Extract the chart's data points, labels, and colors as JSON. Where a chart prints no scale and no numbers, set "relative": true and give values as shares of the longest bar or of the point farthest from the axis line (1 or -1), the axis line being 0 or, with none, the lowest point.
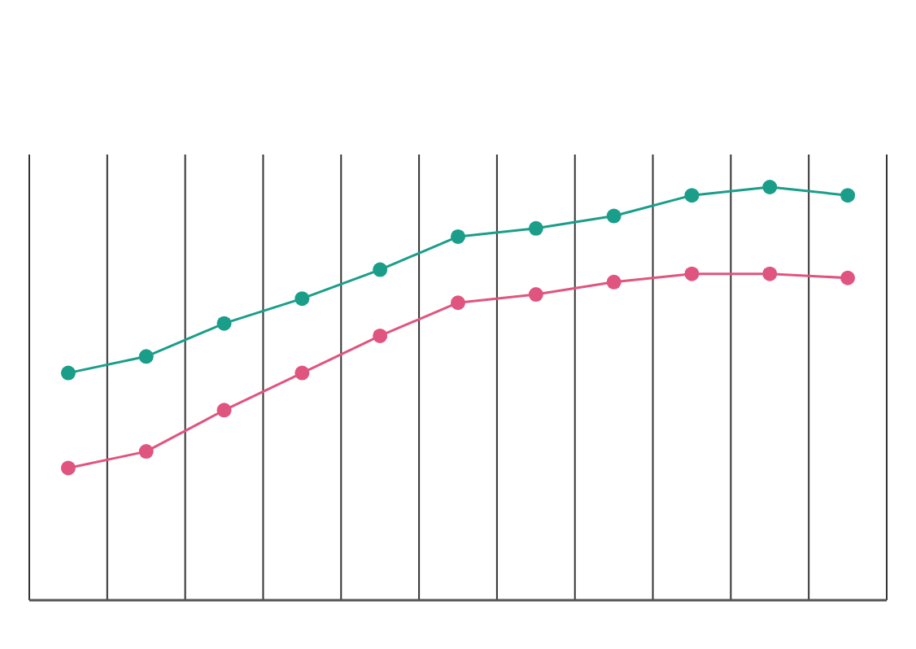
{
  "chart_data": {
    "type": "line",
    "relative": true,
    "categories": [
      null,
      null,
      null,
      null,
      null,
      null,
      null,
      null,
      null,
      null,
      null
    ],
    "series": [
      {
        "color": "#1a9e8a",
        "values": [
          0.55,
          0.59,
          0.67,
          0.73,
          0.8,
          0.88,
          0.9,
          0.93,
          0.98,
          1,
          0.98
        ]
      },
      {
        "color": "#e0557f",
        "values": [
          0.32,
          0.36,
          0.46,
          0.55,
          0.64,
          0.72,
          0.74,
          0.77,
          0.79,
          0.79,
          0.78
        ]
      }
    ],
    "marker": "circle",
    "grid": "x"
  }
}
